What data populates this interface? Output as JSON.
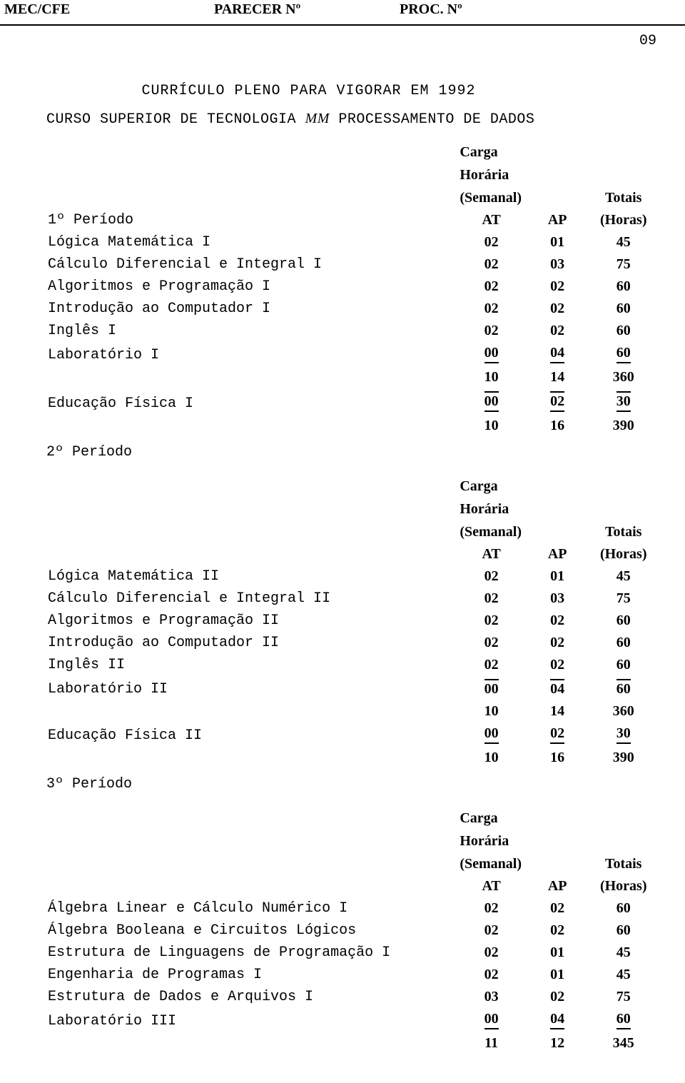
{
  "header": {
    "left": "MEC/CFE",
    "center": "PARECER Nº",
    "right": "PROC. Nº",
    "page_number": "09"
  },
  "title": "CURRÍCULO PLENO PARA VIGORAR EM 1992",
  "subtitle_a": "CURSO SUPERIOR DE TECNOLOGIA ",
  "subtitle_mm": "MM",
  "subtitle_b": " PROCESSAMENTO DE DADOS",
  "col_labels": {
    "carga": "Carga",
    "horaria": "Horária",
    "semanal": "(Semanal)",
    "totais": "Totais",
    "at": "AT",
    "ap": "AP",
    "horas": "(Horas)"
  },
  "periods": [
    {
      "label": "1º Período",
      "rows": [
        {
          "d": "Lógica Matemática I",
          "at": "02",
          "ap": "01",
          "h": "45"
        },
        {
          "d": "Cálculo Diferencial e Integral I",
          "at": "02",
          "ap": "03",
          "h": "75"
        },
        {
          "d": "Algoritmos e Programação I",
          "at": "02",
          "ap": "02",
          "h": "60"
        },
        {
          "d": "Introdução ao Computador I",
          "at": "02",
          "ap": "02",
          "h": "60"
        },
        {
          "d": "Inglês I",
          "at": "02",
          "ap": "02",
          "h": "60"
        },
        {
          "d": "Laboratório I",
          "at": "00",
          "ap": "04",
          "h": "60",
          "ul": true
        },
        {
          "d": "",
          "at": "10",
          "ap": "14",
          "h": "360"
        },
        {
          "d": "Educação Física I",
          "at": "00",
          "ap": "02",
          "h": "30",
          "bl": true
        },
        {
          "d": "",
          "at": "10",
          "ap": "16",
          "h": "390"
        }
      ],
      "next_label": "2º Período"
    },
    {
      "label": "",
      "rows": [
        {
          "d": "Lógica Matemática II",
          "at": "02",
          "ap": "01",
          "h": "45"
        },
        {
          "d": "Cálculo Diferencial e Integral II",
          "at": "02",
          "ap": "03",
          "h": "75"
        },
        {
          "d": "Algoritmos e Programação II",
          "at": "02",
          "ap": "02",
          "h": "60"
        },
        {
          "d": "Introdução ao Computador II",
          "at": "02",
          "ap": "02",
          "h": "60"
        },
        {
          "d": "Inglês II",
          "at": "02",
          "ap": "02",
          "h": "60"
        },
        {
          "d": "Laboratório II",
          "at": "00",
          "ap": "04",
          "h": "60",
          "tl": true
        },
        {
          "d": "",
          "at": "10",
          "ap": "14",
          "h": "360"
        },
        {
          "d": "Educação Física II",
          "at": "00",
          "ap": "02",
          "h": "30",
          "ul": true
        },
        {
          "d": "",
          "at": "10",
          "ap": "16",
          "h": "390"
        }
      ],
      "next_label": "3º Período"
    },
    {
      "label": "",
      "rows": [
        {
          "d": "Álgebra Linear e Cálculo Numérico I",
          "at": "02",
          "ap": "02",
          "h": "60"
        },
        {
          "d": "Álgebra Booleana e Circuitos Lógicos",
          "at": "02",
          "ap": "02",
          "h": "60"
        },
        {
          "d": "Estrutura de Linguagens de Programação I",
          "at": "02",
          "ap": "01",
          "h": "45"
        },
        {
          "d": "Engenharia de Programas I",
          "at": "02",
          "ap": "01",
          "h": "45"
        },
        {
          "d": "Estrutura de Dados e Arquivos I",
          "at": "03",
          "ap": "02",
          "h": "75"
        },
        {
          "d": "Laboratório III",
          "at": "00",
          "ap": "04",
          "h": "60",
          "ul": true
        },
        {
          "d": "",
          "at": "11",
          "ap": "12",
          "h": "345"
        }
      ],
      "next_label": ""
    }
  ]
}
